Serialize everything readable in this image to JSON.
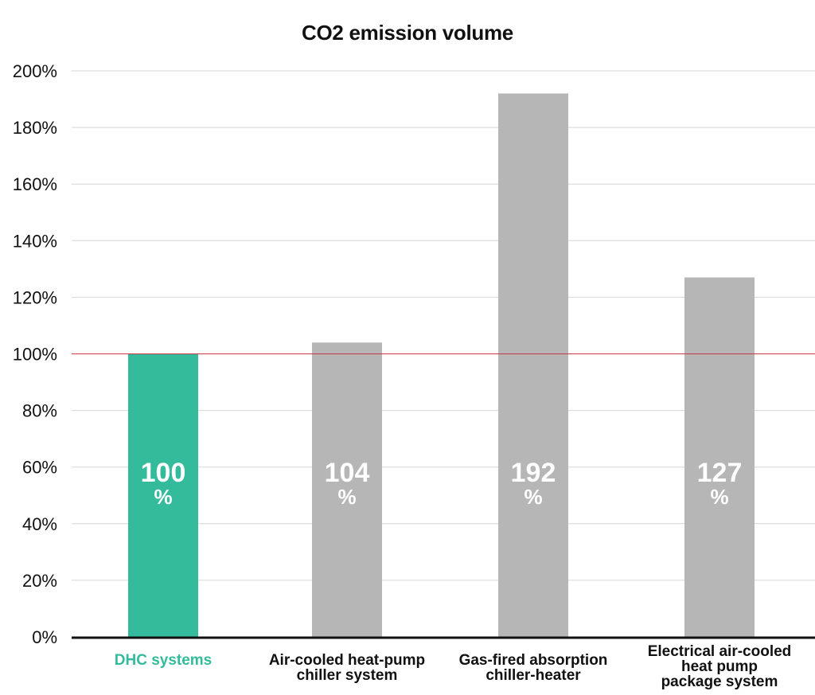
{
  "chart_data": {
    "type": "bar",
    "title": "CO2 emission volume",
    "xlabel": "",
    "ylabel": "",
    "ylim": [
      0,
      200
    ],
    "yticks": [
      0,
      20,
      40,
      60,
      80,
      100,
      120,
      140,
      160,
      180,
      200
    ],
    "ytick_labels": [
      "0%",
      "20%",
      "40%",
      "60%",
      "80%",
      "100%",
      "120%",
      "140%",
      "160%",
      "180%",
      "200%"
    ],
    "categories": [
      [
        "DHC systems"
      ],
      [
        "Air-cooled heat-pump",
        "chiller system"
      ],
      [
        "Gas-fired absorption",
        "chiller-heater"
      ],
      [
        "Electrical air-cooled",
        "heat pump",
        "package system"
      ]
    ],
    "values": [
      100,
      104,
      192,
      127
    ],
    "data_labels": [
      {
        "number": "100",
        "unit": "%"
      },
      {
        "number": "104",
        "unit": "%"
      },
      {
        "number": "192",
        "unit": "%"
      },
      {
        "number": "127",
        "unit": "%"
      }
    ],
    "reference_line": 100,
    "grid": true,
    "legend": "none",
    "colors": {
      "highlight_bar": "#33bb9c",
      "bar": "#b6b6b6",
      "reference_line": "#c8384a",
      "grid": "#d6d6d6",
      "axis": "#111111",
      "highlight_label": "#33bb9c",
      "label": "#111111",
      "data_label": "#ffffff"
    }
  }
}
